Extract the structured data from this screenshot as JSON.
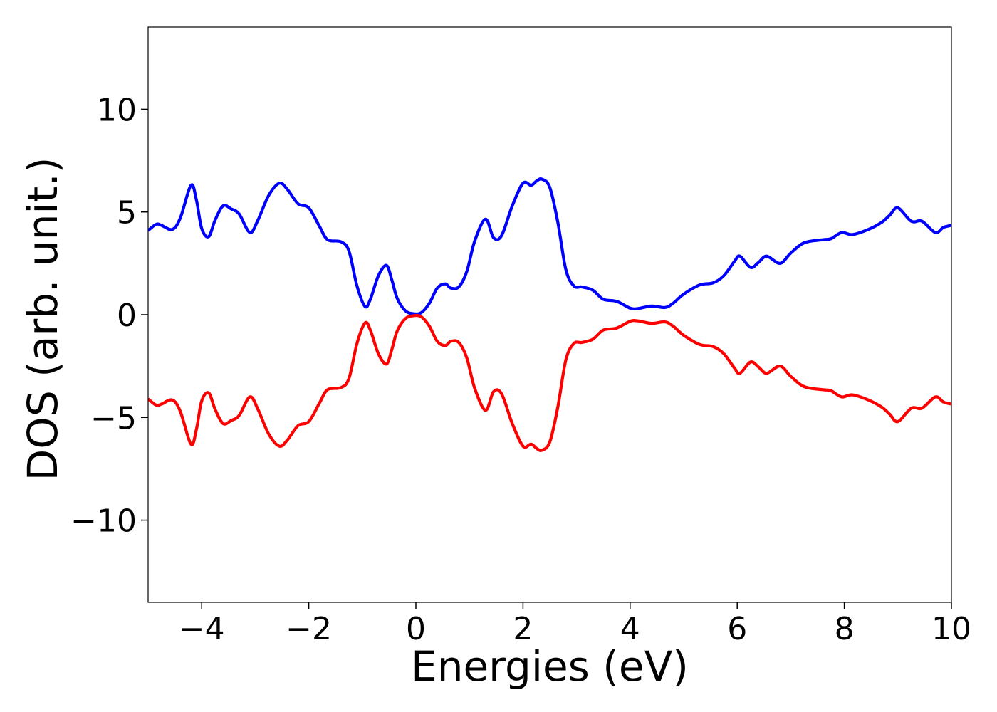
{
  "chart_data": {
    "type": "line",
    "title": "",
    "xlabel": "Energies (eV)",
    "ylabel": "DOS (arb. unit.)",
    "xlim": [
      -5,
      10
    ],
    "ylim": [
      -14,
      14
    ],
    "xticks": [
      -4,
      -2,
      0,
      2,
      4,
      6,
      8,
      10
    ],
    "xtick_labels": [
      "−4",
      "−2",
      "0",
      "2",
      "4",
      "6",
      "8",
      "10"
    ],
    "yticks": [
      10,
      5,
      0,
      -5,
      -10
    ],
    "ytick_labels": [
      "10",
      "5",
      "0",
      "−5",
      "−10"
    ],
    "grid": false,
    "legend": "none",
    "series": [
      {
        "color": "#0000ff",
        "x": [
          -5.0,
          -4.85,
          -4.75,
          -4.55,
          -4.4,
          -4.2,
          -4.1,
          -4.0,
          -3.87,
          -3.75,
          -3.6,
          -3.45,
          -3.3,
          -3.1,
          -2.95,
          -2.75,
          -2.55,
          -2.4,
          -2.2,
          -2.0,
          -1.8,
          -1.65,
          -1.4,
          -1.25,
          -1.1,
          -0.95,
          -0.85,
          -0.7,
          -0.55,
          -0.45,
          -0.35,
          -0.2,
          -0.05,
          0.1,
          0.25,
          0.4,
          0.55,
          0.65,
          0.8,
          0.95,
          1.1,
          1.3,
          1.45,
          1.6,
          1.8,
          2.0,
          2.15,
          2.25,
          2.35,
          2.5,
          2.65,
          2.8,
          2.95,
          3.1,
          3.3,
          3.5,
          3.75,
          4.0,
          4.15,
          4.4,
          4.65,
          4.8,
          5.0,
          5.3,
          5.55,
          5.75,
          5.95,
          6.05,
          6.25,
          6.4,
          6.55,
          6.8,
          7.0,
          7.25,
          7.6,
          7.75,
          7.95,
          8.15,
          8.45,
          8.7,
          8.85,
          9.0,
          9.25,
          9.45,
          9.7,
          9.85,
          10.0
        ],
        "values": [
          4.1,
          4.4,
          4.35,
          4.15,
          4.7,
          6.3,
          5.6,
          4.2,
          3.8,
          4.6,
          5.3,
          5.15,
          4.9,
          4.0,
          4.6,
          5.8,
          6.4,
          6.1,
          5.4,
          5.2,
          4.3,
          3.65,
          3.55,
          3.1,
          1.4,
          0.4,
          0.75,
          1.9,
          2.4,
          1.7,
          0.8,
          0.2,
          0.05,
          0.1,
          0.55,
          1.3,
          1.5,
          1.3,
          1.35,
          2.1,
          3.6,
          4.65,
          3.75,
          3.85,
          5.3,
          6.4,
          6.3,
          6.5,
          6.6,
          6.2,
          4.5,
          2.2,
          1.4,
          1.35,
          1.2,
          0.75,
          0.65,
          0.32,
          0.3,
          0.42,
          0.35,
          0.55,
          1.0,
          1.45,
          1.55,
          1.9,
          2.6,
          2.85,
          2.3,
          2.55,
          2.85,
          2.5,
          3.0,
          3.5,
          3.65,
          3.7,
          4.0,
          3.9,
          4.15,
          4.5,
          4.85,
          5.2,
          4.55,
          4.55,
          4.0,
          4.25,
          4.35
        ]
      },
      {
        "color": "#ff0000",
        "x": [
          -5.0,
          -4.85,
          -4.75,
          -4.55,
          -4.4,
          -4.2,
          -4.1,
          -4.0,
          -3.87,
          -3.75,
          -3.6,
          -3.45,
          -3.3,
          -3.1,
          -2.95,
          -2.75,
          -2.55,
          -2.4,
          -2.2,
          -2.0,
          -1.8,
          -1.65,
          -1.4,
          -1.25,
          -1.1,
          -0.95,
          -0.85,
          -0.7,
          -0.55,
          -0.45,
          -0.35,
          -0.2,
          -0.05,
          0.1,
          0.25,
          0.4,
          0.55,
          0.65,
          0.8,
          0.95,
          1.1,
          1.3,
          1.45,
          1.6,
          1.8,
          2.0,
          2.15,
          2.25,
          2.35,
          2.5,
          2.65,
          2.8,
          2.95,
          3.1,
          3.3,
          3.5,
          3.75,
          4.0,
          4.15,
          4.4,
          4.65,
          4.8,
          5.0,
          5.3,
          5.55,
          5.75,
          5.95,
          6.05,
          6.25,
          6.4,
          6.55,
          6.8,
          7.0,
          7.25,
          7.6,
          7.75,
          7.95,
          8.15,
          8.45,
          8.7,
          8.85,
          9.0,
          9.25,
          9.45,
          9.7,
          9.85,
          10.0
        ],
        "values": [
          -4.1,
          -4.4,
          -4.35,
          -4.15,
          -4.7,
          -6.3,
          -5.6,
          -4.2,
          -3.8,
          -4.6,
          -5.3,
          -5.15,
          -4.9,
          -4.0,
          -4.6,
          -5.8,
          -6.4,
          -6.1,
          -5.4,
          -5.2,
          -4.3,
          -3.65,
          -3.55,
          -3.1,
          -1.4,
          -0.4,
          -0.75,
          -1.9,
          -2.4,
          -1.7,
          -0.8,
          -0.2,
          -0.05,
          -0.1,
          -0.55,
          -1.3,
          -1.5,
          -1.3,
          -1.35,
          -2.1,
          -3.6,
          -4.65,
          -3.75,
          -3.85,
          -5.3,
          -6.4,
          -6.3,
          -6.5,
          -6.6,
          -6.2,
          -4.5,
          -2.2,
          -1.4,
          -1.35,
          -1.2,
          -0.75,
          -0.65,
          -0.32,
          -0.3,
          -0.42,
          -0.35,
          -0.55,
          -1.0,
          -1.45,
          -1.55,
          -1.9,
          -2.6,
          -2.85,
          -2.3,
          -2.55,
          -2.85,
          -2.5,
          -3.0,
          -3.5,
          -3.65,
          -3.7,
          -4.0,
          -3.9,
          -4.15,
          -4.5,
          -4.85,
          -5.2,
          -4.55,
          -4.55,
          -4.0,
          -4.25,
          -4.35
        ]
      }
    ]
  }
}
